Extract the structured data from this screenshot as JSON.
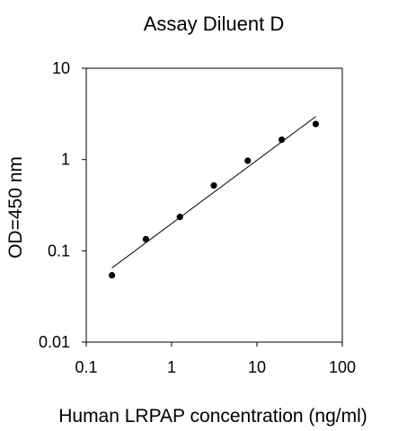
{
  "chart_data": {
    "type": "scatter",
    "title": "Assay Diluent D",
    "xlabel": "Human LRPAP concentration (ng/ml)",
    "ylabel": "OD=450 nm",
    "x_scale": "log",
    "y_scale": "log",
    "xlim": [
      0.1,
      100
    ],
    "ylim": [
      0.01,
      10
    ],
    "x_ticks": [
      0.1,
      1,
      10,
      100
    ],
    "x_tick_labels": [
      "0.1",
      "1",
      "10",
      "100"
    ],
    "y_ticks": [
      0.01,
      0.1,
      1,
      10
    ],
    "y_tick_labels": [
      "0.01",
      "0.1",
      "1",
      "10"
    ],
    "grid": false,
    "legend": "none",
    "colors": {
      "marker": "#000000",
      "line": "#000000",
      "axis": "#000000"
    },
    "series": [
      {
        "x": [
          0.2,
          0.5,
          1.25,
          3.125,
          7.8,
          19.5,
          48.8
        ],
        "y": [
          0.054,
          0.134,
          0.235,
          0.52,
          0.97,
          1.65,
          2.45
        ]
      }
    ],
    "fit_line": {
      "x": [
        0.2,
        48.8
      ],
      "y": [
        0.065,
        2.95
      ]
    }
  }
}
